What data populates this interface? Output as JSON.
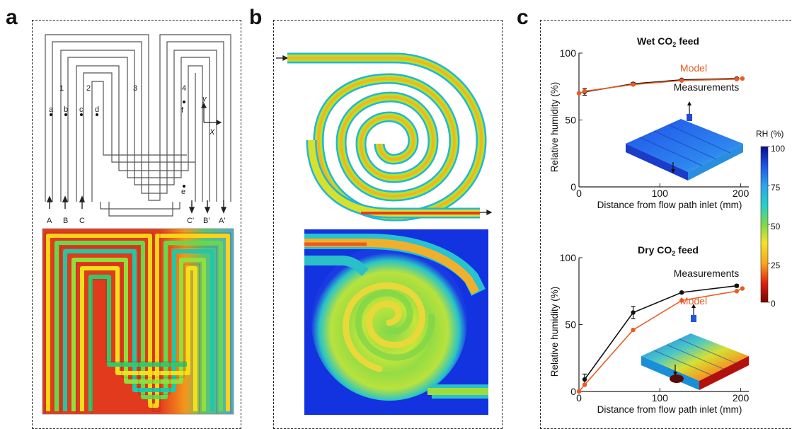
{
  "panels": {
    "a": {
      "letter": "a",
      "channel_numbers": [
        "1",
        "2",
        "3",
        "4"
      ],
      "sensor_points": [
        "a",
        "b",
        "c",
        "d",
        "e",
        "f"
      ],
      "port_labels": [
        "A",
        "B",
        "C",
        "C'",
        "B'",
        "A'"
      ],
      "axis_labels": {
        "y": "y",
        "x": "X"
      }
    },
    "b": {
      "letter": "b"
    },
    "c": {
      "letter": "c",
      "colorbar": {
        "title": "RH (%)",
        "ticks": [
          "100",
          "75",
          "50",
          "25",
          "0"
        ]
      }
    }
  },
  "colors": {
    "model": "#ea5b24",
    "measurement": "#111111"
  },
  "chart_data": [
    {
      "type": "line",
      "title": "Wet CO2 feed",
      "xlabel": "Distance from flow path inlet (mm)",
      "ylabel": "Relative humidity (%)",
      "xlim": [
        0,
        210
      ],
      "ylim": [
        0,
        100
      ],
      "xticks": [
        "0",
        "100",
        "200"
      ],
      "yticks": [
        "0",
        "50",
        "100"
      ],
      "series": [
        {
          "name": "Measurements",
          "x": [
            7,
            67,
            127,
            195
          ],
          "y": [
            71,
            77,
            80,
            81
          ],
          "err": [
            2.5,
            1,
            0.6,
            0.6
          ]
        },
        {
          "name": "Model",
          "x": [
            0,
            7,
            67,
            127,
            195,
            202
          ],
          "y": [
            70,
            71.5,
            76.5,
            79.5,
            80.5,
            81
          ]
        }
      ]
    },
    {
      "type": "line",
      "title": "Dry CO2 feed",
      "xlabel": "Distance from flow path inlet (mm)",
      "ylabel": "Relative humidity (%)",
      "xlim": [
        0,
        210
      ],
      "ylim": [
        0,
        100
      ],
      "xticks": [
        "0",
        "100",
        "200"
      ],
      "yticks": [
        "0",
        "50",
        "100"
      ],
      "series": [
        {
          "name": "Measurements",
          "x": [
            7,
            67,
            127,
            195
          ],
          "y": [
            9,
            59,
            74,
            79
          ],
          "err": [
            4,
            4.5,
            0.6,
            1
          ]
        },
        {
          "name": "Model",
          "x": [
            0,
            7,
            67,
            127,
            195,
            202
          ],
          "y": [
            0,
            5,
            46,
            68,
            75,
            77
          ]
        }
      ]
    }
  ]
}
